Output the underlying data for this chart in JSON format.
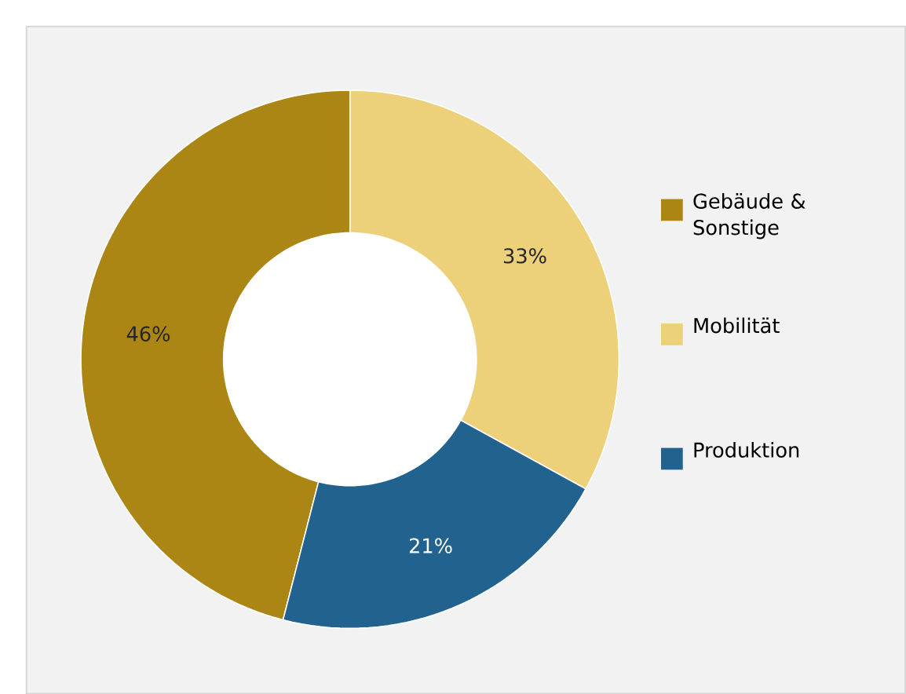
{
  "chart_data": {
    "type": "donut",
    "categories": [
      "Gebäude & Sonstige",
      "Mobilität",
      "Produktion"
    ],
    "values": [
      46,
      33,
      21
    ],
    "colors": [
      "#ab8615",
      "#edd07a",
      "#22628f"
    ],
    "value_labels": [
      "46%",
      "33%",
      "21%"
    ],
    "legend": "right"
  }
}
